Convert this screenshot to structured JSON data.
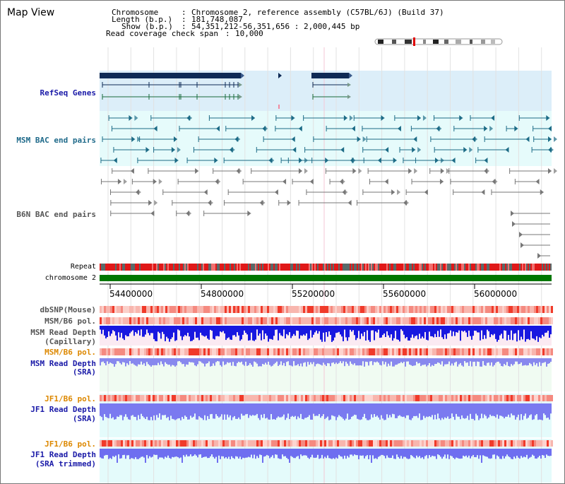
{
  "page": {
    "title": "Map View"
  },
  "header": {
    "chromosome_key": "Chromosome",
    "chromosome_value": "Chromosome 2, reference assembly (C57BL/6J) (Build 37)",
    "length_key": "Length (b.p.)",
    "length_value": "181,748,087",
    "show_key": "Show (b.p.)",
    "show_value": "54,351,212-56,351,656 : 2,000,445 bp",
    "read_coverage_key": "Read coverage check span",
    "read_coverage_value": "10,000"
  },
  "tracks": {
    "refseq": "RefSeq Genes",
    "msm_bac": "MSM BAC end pairs",
    "b6n_bac": "B6N BAC end pairs",
    "repeat": "Repeat",
    "chromosome": "chromosome 2",
    "dbsnp": "dbSNP(Mouse)",
    "msm_b6_pol_1": "MSM/B6 pol.",
    "msm_read_depth_cap_1": "MSM Read Depth",
    "msm_read_depth_cap_2": "(Capillary)",
    "msm_b6_pol_2": "MSM/B6 pol.",
    "msm_read_depth_sra_1": "MSM Read Depth",
    "msm_read_depth_sra_2": "(SRA)",
    "jf1_b6_pol_1": "JF1/B6 pol.",
    "jf1_read_depth_sra_1": "JF1 Read Depth",
    "jf1_read_depth_sra_2": "(SRA)",
    "jf1_b6_pol_2": "JF1/B6 pol.",
    "jf1_read_depth_trim_1": "JF1 Read Depth",
    "jf1_read_depth_trim_2": "(SRA trimmed)"
  },
  "axis": {
    "ticks": [
      "54400000",
      "54800000",
      "55200000",
      "55600000",
      "56000000"
    ]
  },
  "colors": {
    "refseq_bg": "#dceef9",
    "bac_bg": "#e6fbfb",
    "depth_bg": "#f0fbf2",
    "jf1_bg": "#e4fbfb",
    "gene_dark": "#0e2a55",
    "bac_teal": "#1c6b86",
    "b6n_gray": "#777777",
    "chromosome_green": "#007700",
    "depth_dark_blue": "#1818e0",
    "depth_light_blue": "#7a7af0"
  }
}
